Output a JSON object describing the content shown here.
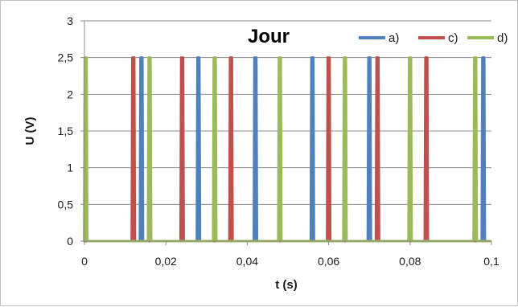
{
  "chart_data": {
    "type": "line",
    "title": "Jour",
    "xlabel": "t (s)",
    "ylabel": "U (V)",
    "xlim": [
      0,
      0.1
    ],
    "ylim": [
      0,
      3
    ],
    "x_ticks": [
      "0",
      "0,02",
      "0,04",
      "0,06",
      "0,08",
      "0,1"
    ],
    "y_ticks": [
      "0",
      "0,5",
      "1",
      "1,5",
      "2",
      "2,5",
      "3"
    ],
    "grid": "horizontal",
    "legend_position": "top-right",
    "pulse_height": 2.5,
    "series": [
      {
        "name": "a)",
        "color": "#4f81bd",
        "pulses": [
          0.014,
          0.028,
          0.042,
          0.056,
          0.07,
          0.098
        ]
      },
      {
        "name": "c)",
        "color": "#c0504d",
        "pulses": [
          0.012,
          0.024,
          0.036,
          0.06,
          0.072,
          0.084
        ]
      },
      {
        "name": "d)",
        "color": "#9bbb59",
        "pulses": [
          0.0003,
          0.016,
          0.032,
          0.048,
          0.064,
          0.08,
          0.096
        ]
      }
    ]
  }
}
